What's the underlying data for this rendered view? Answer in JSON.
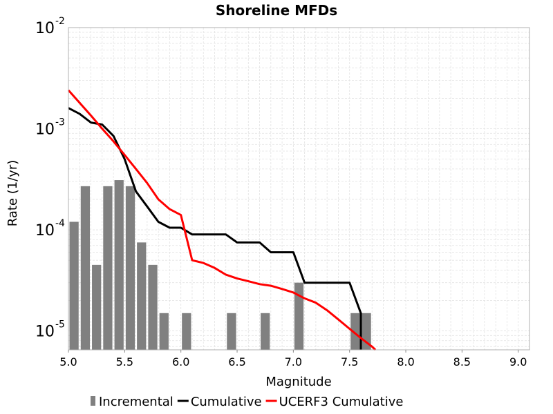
{
  "chart_data": {
    "type": "bar",
    "title": "Shoreline MFDs",
    "xlabel": "Magnitude",
    "ylabel": "Rate (1/yr)",
    "x_scale": "linear",
    "y_scale": "log",
    "xlim": [
      5.0,
      9.1
    ],
    "ylim": [
      6.5e-06,
      0.01
    ],
    "x_ticks": [
      "5.0",
      "5.5",
      "6.0",
      "6.5",
      "7.0",
      "7.5",
      "8.0",
      "8.5",
      "9.0"
    ],
    "y_ticks": [
      {
        "base": "10",
        "exp": "-5",
        "value": 1e-05
      },
      {
        "base": "10",
        "exp": "-4",
        "value": 0.0001
      },
      {
        "base": "10",
        "exp": "-3",
        "value": 0.001
      },
      {
        "base": "10",
        "exp": "-2",
        "value": 0.01
      }
    ],
    "grid": true,
    "legend_position": "bottom",
    "series": [
      {
        "name": "Incremental",
        "kind": "bar",
        "color": "#808080",
        "x": [
          5.05,
          5.15,
          5.25,
          5.35,
          5.45,
          5.55,
          5.65,
          5.75,
          5.85,
          6.05,
          6.45,
          6.75,
          7.05,
          7.55,
          7.65
        ],
        "values": [
          0.00012,
          0.00027,
          4.5e-05,
          0.00027,
          0.00031,
          0.00027,
          7.5e-05,
          4.5e-05,
          1.5e-05,
          1.5e-05,
          1.5e-05,
          1.5e-05,
          3e-05,
          1.5e-05,
          1.5e-05
        ]
      },
      {
        "name": "Cumulative",
        "kind": "line",
        "color": "#000000",
        "x": [
          5.0,
          5.1,
          5.2,
          5.3,
          5.4,
          5.5,
          5.6,
          5.7,
          5.8,
          5.9,
          6.0,
          6.1,
          6.2,
          6.3,
          6.4,
          6.5,
          6.6,
          6.7,
          6.8,
          6.9,
          7.0,
          7.1,
          7.2,
          7.3,
          7.4,
          7.5,
          7.6,
          7.6
        ],
        "values": [
          0.0016,
          0.0014,
          0.00115,
          0.0011,
          0.00085,
          0.0005,
          0.00024,
          0.00017,
          0.00012,
          0.000105,
          0.000105,
          9e-05,
          9e-05,
          9e-05,
          9e-05,
          7.5e-05,
          7.5e-05,
          7.5e-05,
          6e-05,
          6e-05,
          6e-05,
          3e-05,
          3e-05,
          3e-05,
          3e-05,
          3e-05,
          1.5e-05,
          6.5e-06
        ]
      },
      {
        "name": "UCERF3 Cumulative",
        "kind": "line",
        "color": "#ff0000",
        "x": [
          5.0,
          5.1,
          5.2,
          5.3,
          5.4,
          5.5,
          5.6,
          5.7,
          5.8,
          5.9,
          6.0,
          6.1,
          6.2,
          6.3,
          6.4,
          6.5,
          6.6,
          6.7,
          6.8,
          6.9,
          7.0,
          7.1,
          7.2,
          7.3,
          7.4,
          7.5,
          7.6,
          7.7,
          7.73
        ],
        "values": [
          0.0024,
          0.0018,
          0.00135,
          0.001,
          0.00075,
          0.00055,
          0.0004,
          0.00029,
          0.0002,
          0.00016,
          0.00014,
          5e-05,
          4.7e-05,
          4.2e-05,
          3.6e-05,
          3.3e-05,
          3.1e-05,
          2.9e-05,
          2.8e-05,
          2.6e-05,
          2.4e-05,
          2.1e-05,
          1.9e-05,
          1.6e-05,
          1.3e-05,
          1.05e-05,
          8.5e-06,
          7e-06,
          6.5e-06
        ]
      }
    ]
  }
}
